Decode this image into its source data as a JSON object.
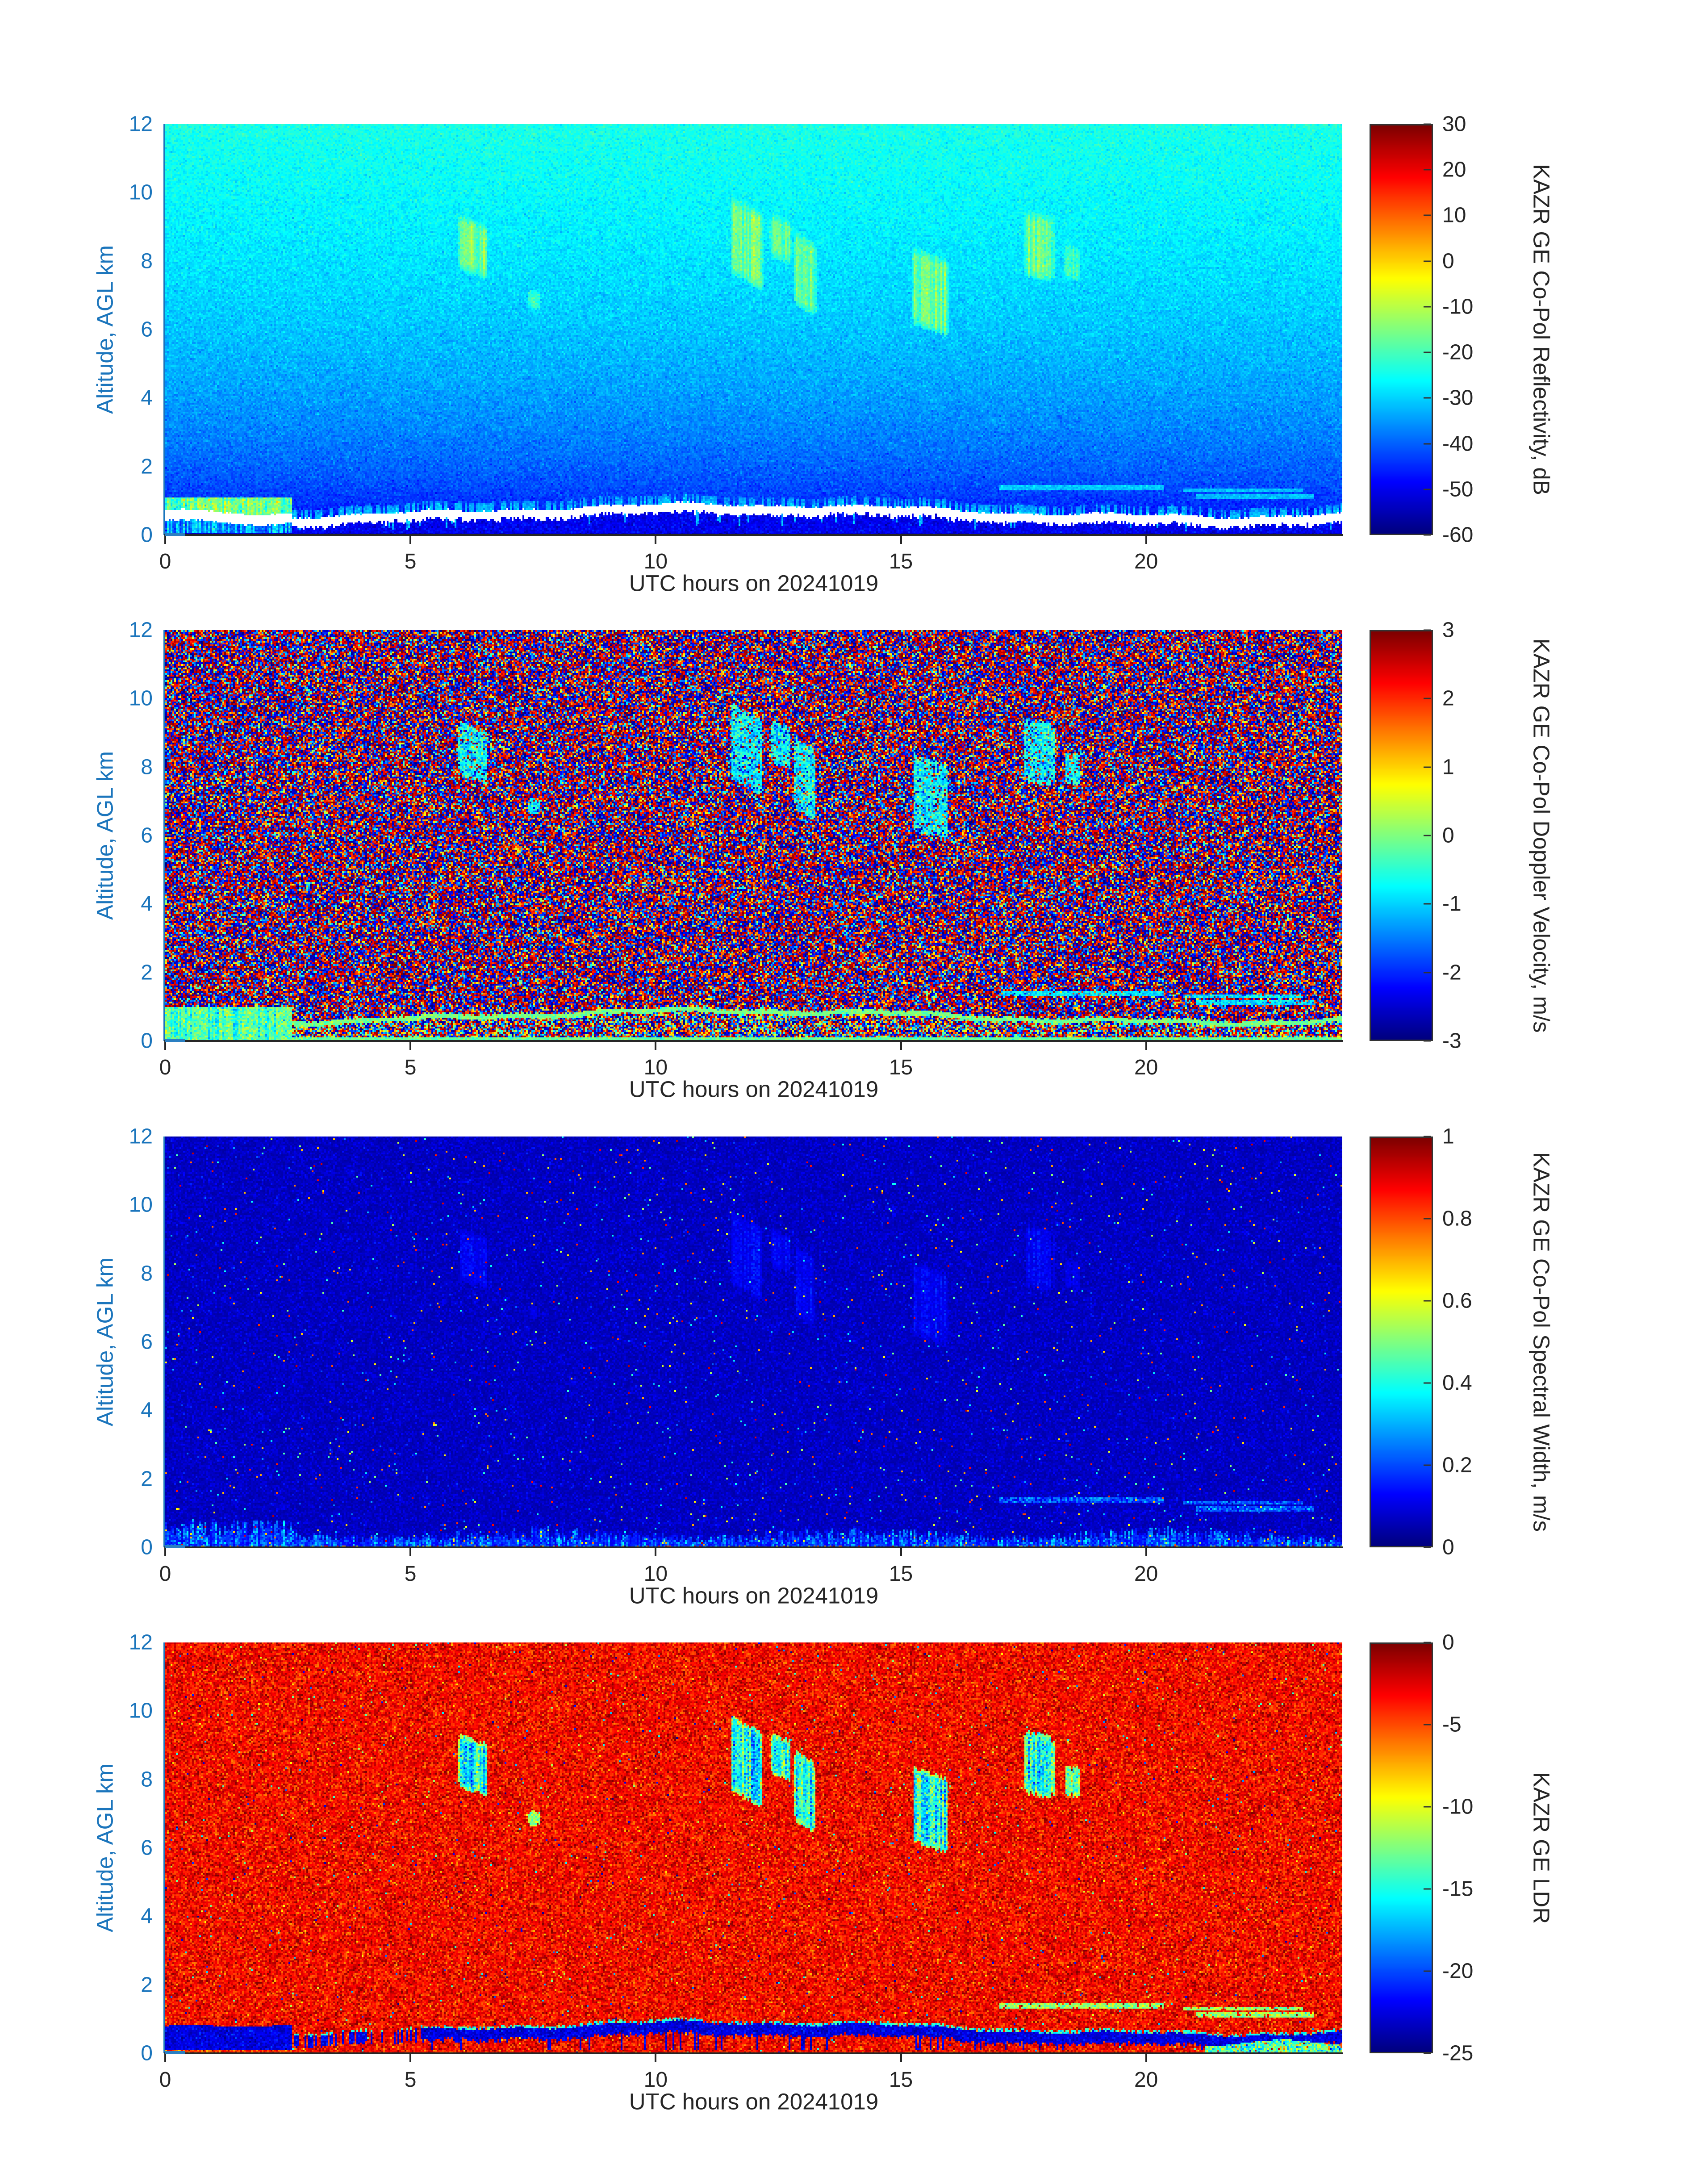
{
  "figure": {
    "xlabel": "UTC hours on 20241019",
    "ylabel": "Altitude, AGL km"
  },
  "colors": {
    "axis_blue": "#1b75bc",
    "axis_dark": "#262626",
    "colorbar_border": "#333333",
    "nan_white": "#ffffff",
    "background": "#ffffff"
  },
  "chart_data": {
    "type": "heatmap",
    "colormap": "jet",
    "x": {
      "label": "UTC hours on 20241019",
      "min": 0,
      "max": 24,
      "ticks": [
        0,
        5,
        10,
        15,
        20
      ]
    },
    "y": {
      "label": "Altitude, AGL km",
      "min": 0,
      "max": 12,
      "ticks": [
        12,
        10,
        8,
        6,
        4,
        2,
        0
      ]
    },
    "panels": [
      {
        "name": "reflectivity",
        "colorbar_label": "KAZR GE Co-Pol Reflectivity, dB",
        "vmin": -60,
        "vmax": 30,
        "colorbar_tick_values": [
          30,
          20,
          10,
          0,
          -10,
          -20,
          -30,
          -40,
          -50,
          -60
        ],
        "colorbar_tick_labels": [
          "30",
          "20",
          "10",
          "0",
          "-10",
          "-20",
          "-30",
          "-40",
          "-50",
          "-60"
        ],
        "seed": 101,
        "noise_floor": {
          "v0": -60,
          "amp": 36,
          "pow": 0.33,
          "sigma": 2.0
        },
        "cloud_peak_db": -10,
        "white_band": true
      },
      {
        "name": "doppler-velocity",
        "colorbar_label": "KAZR GE Co-Pol Doppler Velocity, m/s",
        "vmin": -3,
        "vmax": 3,
        "colorbar_tick_values": [
          3,
          2,
          1,
          0,
          -1,
          -2,
          -3
        ],
        "colorbar_tick_labels": [
          "3",
          "2",
          "1",
          "0",
          "-1",
          "-2",
          "-3"
        ],
        "seed": 202,
        "cloud_velocity": -0.9,
        "bl_velocity": -0.12
      },
      {
        "name": "spectral-width",
        "colorbar_label": "KAZR GE Co-Pol Spectral Width, m/s",
        "vmin": 0,
        "vmax": 1,
        "colorbar_tick_values": [
          1,
          0.8,
          0.6,
          0.4,
          0.2,
          0
        ],
        "colorbar_tick_labels": [
          "1",
          "0.8",
          "0.6",
          "0.4",
          "0.2",
          "0"
        ],
        "seed": 303,
        "base_width": 0.035,
        "bl_width": 0.25
      },
      {
        "name": "ldr",
        "colorbar_label": "KAZR GE LDR",
        "vmin": -25,
        "vmax": 0,
        "colorbar_tick_values": [
          0,
          -5,
          -10,
          -15,
          -20,
          -25
        ],
        "colorbar_tick_labels": [
          "0",
          "-5",
          "-10",
          "-15",
          "-20",
          "-25"
        ],
        "seed": 404,
        "base_ldr": -3.1,
        "bl_ldr": -22.6,
        "cloud_ldr": -16
      }
    ],
    "features": {
      "boundary_layer": {
        "edge": {
          "base": 0.72,
          "a1": 0.17,
          "f1": 0.32,
          "t1": 6.5,
          "a2": 0.05,
          "f2": 1.3,
          "p2": 1.0,
          "a3": 0.03,
          "f3": 3.7
        },
        "white_thickness": 0.27,
        "bright_end_hour": 2.6,
        "bright_top_km": 1.12
      },
      "clouds": [
        {
          "t0": 5.95,
          "t1": 6.6,
          "h0": 7.8,
          "h1": 9.35,
          "tilt": -0.5,
          "s": 1.0
        },
        {
          "t0": 7.35,
          "t1": 7.7,
          "h0": 6.55,
          "h1": 7.15,
          "tilt": 0.0,
          "s": 0.45
        },
        {
          "t0": 11.5,
          "t1": 12.2,
          "h0": 7.7,
          "h1": 9.9,
          "tilt": -0.8,
          "s": 1.0
        },
        {
          "t0": 12.3,
          "t1": 12.8,
          "h0": 8.2,
          "h1": 9.4,
          "tilt": -0.6,
          "s": 0.8
        },
        {
          "t0": 12.8,
          "t1": 13.3,
          "h0": 6.8,
          "h1": 8.9,
          "tilt": -0.9,
          "s": 0.85
        },
        {
          "t0": 15.2,
          "t1": 16.0,
          "h0": 6.2,
          "h1": 8.4,
          "tilt": -0.5,
          "s": 0.9
        },
        {
          "t0": 17.5,
          "t1": 18.15,
          "h0": 7.6,
          "h1": 9.45,
          "tilt": -0.3,
          "s": 0.85
        },
        {
          "t0": 18.3,
          "t1": 18.7,
          "h0": 7.5,
          "h1": 8.5,
          "tilt": -0.3,
          "s": 0.5
        }
      ],
      "echo_lines": [
        {
          "t0": 17.0,
          "t1": 20.35,
          "h": 1.38,
          "w": 0.09,
          "s": 1.0
        },
        {
          "t0": 20.75,
          "t1": 23.2,
          "h": 1.3,
          "w": 0.07,
          "s": 0.6
        },
        {
          "t0": 21.0,
          "t1": 23.4,
          "h": 1.12,
          "w": 0.06,
          "s": 0.5
        }
      ]
    }
  }
}
